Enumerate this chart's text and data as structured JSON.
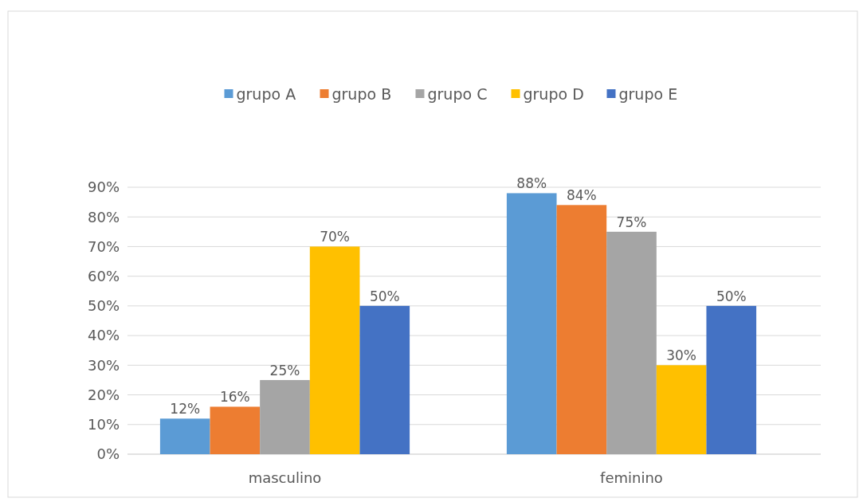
{
  "chart_data": {
    "type": "bar",
    "categories": [
      "masculino",
      "feminino"
    ],
    "series": [
      {
        "name": "grupo A",
        "color": "#5b9bd5",
        "values": [
          12,
          88
        ],
        "value_labels": [
          "12%",
          "88%"
        ]
      },
      {
        "name": "grupo B",
        "color": "#ed7d31",
        "values": [
          16,
          84
        ],
        "value_labels": [
          "16%",
          "84%"
        ]
      },
      {
        "name": "grupo C",
        "color": "#a5a5a5",
        "values": [
          25,
          75
        ],
        "value_labels": [
          "25%",
          "75%"
        ]
      },
      {
        "name": "grupo D",
        "color": "#ffc000",
        "values": [
          70,
          30
        ],
        "value_labels": [
          "70%",
          "30%"
        ]
      },
      {
        "name": "grupo E",
        "color": "#4472c4",
        "values": [
          50,
          50
        ],
        "value_labels": [
          "50%",
          "50%"
        ]
      }
    ],
    "ylim": [
      0,
      90
    ],
    "yticks": [
      {
        "value": 0,
        "label": "0%"
      },
      {
        "value": 10,
        "label": "10%"
      },
      {
        "value": 20,
        "label": "20%"
      },
      {
        "value": 30,
        "label": "30%"
      },
      {
        "value": 40,
        "label": "40%"
      },
      {
        "value": 50,
        "label": "50%"
      },
      {
        "value": 60,
        "label": "60%"
      },
      {
        "value": 70,
        "label": "70%"
      },
      {
        "value": 80,
        "label": "80%"
      },
      {
        "value": 90,
        "label": "90%"
      }
    ],
    "grid": "y",
    "legend": "top"
  }
}
